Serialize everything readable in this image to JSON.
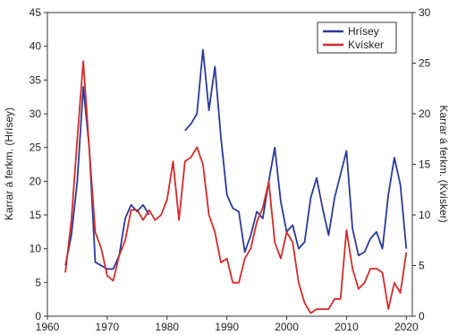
{
  "chart_data": {
    "type": "line",
    "title": "",
    "xlabel": "",
    "ylabel_left": "Karrar á ferkm. (Hrísey)",
    "ylabel_right": "Karrar á ferkm. (Kvísker)",
    "xlim": [
      1960,
      2021
    ],
    "ylim_left": [
      0,
      45
    ],
    "ylim_right": [
      0,
      30
    ],
    "x_ticks": [
      1960,
      1970,
      1980,
      1990,
      2000,
      2010,
      2020
    ],
    "y_ticks_left": [
      0,
      5,
      10,
      15,
      20,
      25,
      30,
      35,
      40,
      45
    ],
    "y_ticks_right": [
      0,
      5,
      10,
      15,
      20,
      25,
      30
    ],
    "grid": false,
    "legend_position": "top-right",
    "series": [
      {
        "name": "Hrísey",
        "axis": "left",
        "color": "#2b3a98",
        "segments": [
          {
            "x": [
              1963,
              1964,
              1965,
              1966,
              1967,
              1968,
              1969,
              1970,
              1971,
              1972,
              1973,
              1974,
              1975,
              1976,
              1977
            ],
            "y": [
              7.5,
              12,
              20,
              34,
              25,
              8,
              7.5,
              7,
              7,
              9,
              14.5,
              16.5,
              15.5,
              16.5,
              15
            ]
          },
          {
            "x": [
              1983,
              1984,
              1985,
              1986,
              1987,
              1988,
              1989,
              1990,
              1991,
              1992,
              1993,
              1994,
              1995,
              1996,
              1997,
              1998,
              1999,
              2000,
              2001,
              2002,
              2003,
              2004,
              2005,
              2006,
              2007,
              2008,
              2009,
              2010,
              2011,
              2012,
              2013,
              2014,
              2015,
              2016,
              2017,
              2018,
              2019,
              2020
            ],
            "y": [
              27.5,
              28.5,
              30,
              39.5,
              30.5,
              37,
              26.5,
              18,
              16,
              15.5,
              9.5,
              12,
              15.5,
              14.5,
              20,
              25,
              17,
              12.5,
              13.5,
              10,
              11,
              17.5,
              20.5,
              16,
              12,
              17.5,
              21,
              24.5,
              13,
              9,
              9.5,
              11.5,
              12.5,
              10,
              18,
              23.5,
              19.5,
              10
            ]
          }
        ]
      },
      {
        "name": "Kvísker",
        "axis": "right",
        "color": "#d62a2a",
        "segments": [
          {
            "x": [
              1963,
              1964,
              1965,
              1966,
              1967,
              1968,
              1969,
              1970,
              1971,
              1972,
              1973,
              1974,
              1975,
              1976,
              1977,
              1978,
              1979,
              1980,
              1981,
              1982,
              1983,
              1984,
              1985,
              1986,
              1987,
              1988,
              1989,
              1990,
              1991,
              1992,
              1993,
              1994,
              1995,
              1996,
              1997,
              1998,
              1999,
              2000,
              2001,
              2002,
              2003,
              2004,
              2005,
              2006,
              2007,
              2008,
              2009,
              2010,
              2011,
              2012,
              2013,
              2014,
              2015,
              2016,
              2017,
              2018,
              2019,
              2020
            ],
            "y": [
              4.3,
              9.5,
              17.5,
              25.2,
              16.5,
              8.3,
              6.7,
              4,
              3.5,
              6,
              7.5,
              10.5,
              10.5,
              9.5,
              10.5,
              9.5,
              10,
              11.5,
              15.3,
              9.5,
              15.3,
              15.7,
              16.7,
              15,
              10,
              8.3,
              5.3,
              5.7,
              3.3,
              3.3,
              5.7,
              6.7,
              9.3,
              10.7,
              13.3,
              7.3,
              5.7,
              8.3,
              7.3,
              3.3,
              1.3,
              0.3,
              0.7,
              0.7,
              0.7,
              1.7,
              1.7,
              8.5,
              4.7,
              2.7,
              3.3,
              4.7,
              4.7,
              4.3,
              0.7,
              3.3,
              2.3,
              6.3
            ]
          }
        ]
      }
    ]
  }
}
